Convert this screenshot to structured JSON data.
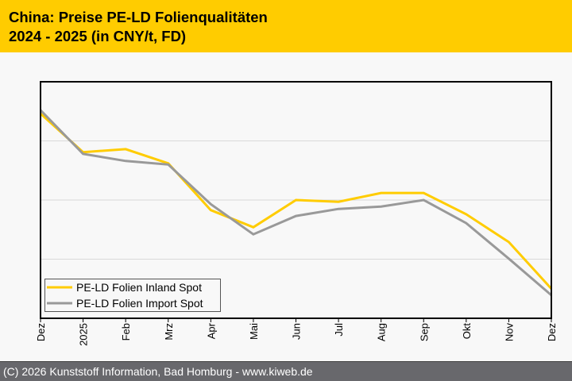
{
  "header": {
    "title_line1": "China: Preise PE-LD Folienqualitäten",
    "title_line2": "2024 - 2025 (in CNY/t, FD)"
  },
  "footer": {
    "text": "(C) 2026 Kunststoff Information, Bad Homburg - www.kiweb.de"
  },
  "colors": {
    "header_bg": "#FFCC00",
    "footer_bg": "#68686C",
    "series_inland": "#FFCC00",
    "series_import": "#999999",
    "gridline": "#D9D9D9"
  },
  "chart_data": {
    "type": "line",
    "title": "China: Preise PE-LD Folienqualitäten 2024 - 2025 (in CNY/t, FD)",
    "xlabel": "",
    "ylabel": "",
    "y_units_note": "No y-axis tick labels shown; values are relative index units estimated from gridlines (gridlines at 1, 2, 3).",
    "ylim": [
      0,
      4
    ],
    "y_gridlines": [
      1,
      2,
      3
    ],
    "grid": true,
    "legend_position": "bottom-left",
    "categories": [
      "Dez",
      "2025",
      "Feb",
      "Mrz",
      "Apr",
      "Mai",
      "Jun",
      "Jul",
      "Aug",
      "Sep",
      "Okt",
      "Nov",
      "Dez"
    ],
    "series": [
      {
        "name": "PE-LD Folien Inland Spot",
        "color": "#FFCC00",
        "values": [
          3.46,
          2.81,
          2.86,
          2.62,
          1.83,
          1.54,
          2.0,
          1.97,
          2.12,
          2.12,
          1.76,
          1.29,
          0.5
        ]
      },
      {
        "name": "PE-LD Folien Import Spot",
        "color": "#999999",
        "values": [
          3.52,
          2.78,
          2.66,
          2.6,
          1.93,
          1.42,
          1.73,
          1.85,
          1.89,
          2.0,
          1.61,
          1.01,
          0.39
        ]
      }
    ]
  }
}
